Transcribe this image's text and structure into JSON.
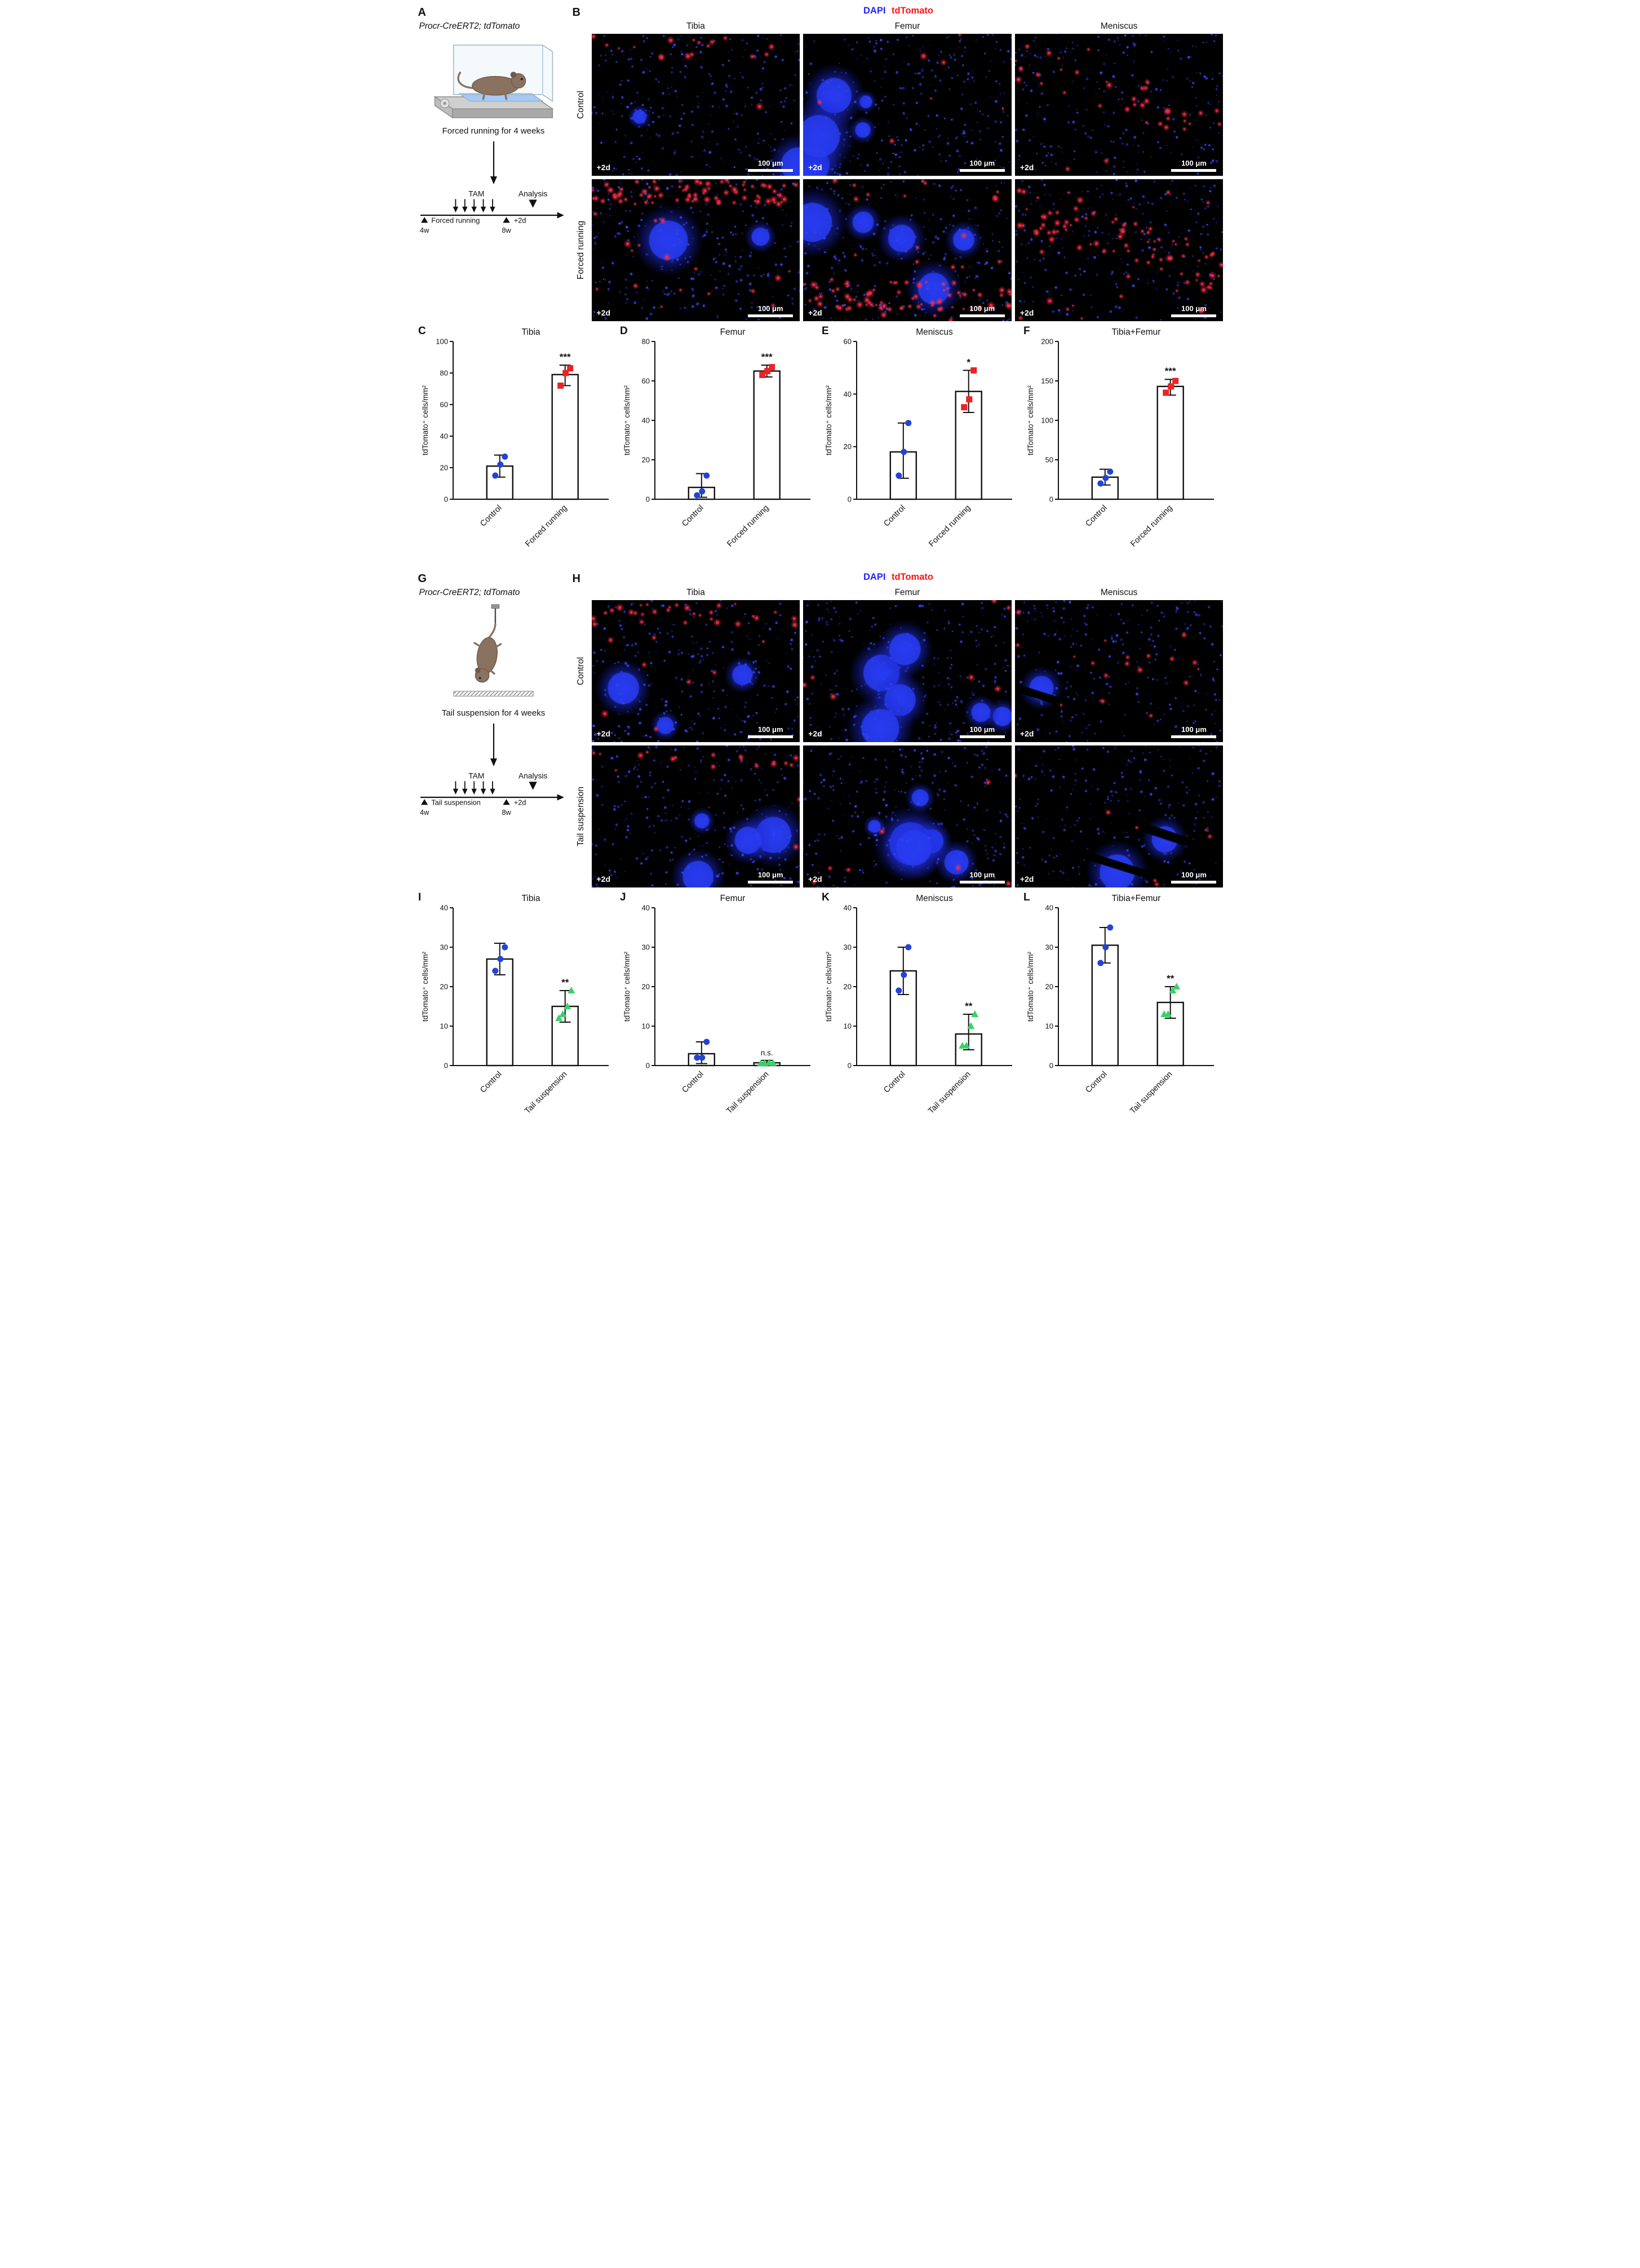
{
  "colors": {
    "dapi_label": "#2222ff",
    "tdtomato_label": "#ff1414",
    "control_points": "#2343d7",
    "forced_running_points": "#ed2224",
    "tail_suspension_points": "#3ad168",
    "bar_fill": "#ffffff",
    "axis": "#111111"
  },
  "panels": {
    "A": {
      "letter": "A",
      "genotype": "Procr-CreERT2; tdTomato",
      "caption": "Forced running for 4 weeks",
      "timeline": {
        "tam": "TAM",
        "analysis": "Analysis",
        "period": "Forced running",
        "start": "4w",
        "end": "8w",
        "extra": "+2d"
      }
    },
    "B": {
      "letter": "B",
      "stain_dapi": "DAPI",
      "stain_tdtomato": "tdTomato",
      "columns": [
        "Tibia",
        "Femur",
        "Meniscus"
      ],
      "rows": [
        "Control",
        "Forced running"
      ],
      "overlay_tag": "+2d",
      "scale_label": "100 μm",
      "images": [
        {
          "condition": "Control",
          "tissue": "Tibia",
          "red": "low",
          "zone": "top",
          "blobs": 2
        },
        {
          "condition": "Control",
          "tissue": "Femur",
          "red": "sparse",
          "zone": "scatter",
          "blobs": 5
        },
        {
          "condition": "Control",
          "tissue": "Meniscus",
          "red": "mid",
          "zone": "diag",
          "blobs": 0
        },
        {
          "condition": "Forced running",
          "tissue": "Tibia",
          "red": "high",
          "zone": "top",
          "blobs": 2
        },
        {
          "condition": "Forced running",
          "tissue": "Femur",
          "red": "high",
          "zone": "bottom",
          "blobs": 5
        },
        {
          "condition": "Forced running",
          "tissue": "Meniscus",
          "red": "high",
          "zone": "diag",
          "blobs": 0
        }
      ]
    },
    "G": {
      "letter": "G",
      "genotype": "Procr-CreERT2; tdTomato",
      "caption": "Tail suspension for 4 weeks",
      "timeline": {
        "tam": "TAM",
        "analysis": "Analysis",
        "period": "Tail suspension",
        "start": "4w",
        "end": "8w",
        "extra": "+2d"
      }
    },
    "H": {
      "letter": "H",
      "stain_dapi": "DAPI",
      "stain_tdtomato": "tdTomato",
      "columns": [
        "Tibia",
        "Femur",
        "Meniscus"
      ],
      "rows": [
        "Control",
        "Tail suspension"
      ],
      "overlay_tag": "+2d",
      "scale_label": "100 μm",
      "images": [
        {
          "condition": "Control",
          "tissue": "Tibia",
          "red": "mid",
          "zone": "top",
          "blobs": 3
        },
        {
          "condition": "Control",
          "tissue": "Femur",
          "red": "sparse",
          "zone": "scatter",
          "blobs": 6
        },
        {
          "condition": "Control",
          "tissue": "Meniscus",
          "red": "low",
          "zone": "diag",
          "blobs": 1
        },
        {
          "condition": "Tail suspension",
          "tissue": "Tibia",
          "red": "low",
          "zone": "top",
          "blobs": 4
        },
        {
          "condition": "Tail suspension",
          "tissue": "Femur",
          "red": "sparse",
          "zone": "scatter",
          "blobs": 6
        },
        {
          "condition": "Tail suspension",
          "tissue": "Meniscus",
          "red": "sparse",
          "zone": "diag",
          "blobs": 2
        }
      ]
    }
  },
  "chart_data": [
    {
      "panel": "C",
      "type": "bar",
      "title": "Tibia",
      "ylabel": "tdTomato⁺ cells/mm²",
      "ylim": [
        0,
        100
      ],
      "yticks": [
        0,
        20,
        40,
        60,
        80,
        100
      ],
      "groups": [
        {
          "label": "Control",
          "mean": 21,
          "err": [
            14,
            28
          ],
          "points": [
            15,
            22,
            27
          ],
          "marker": "circle",
          "color": "#2343d7"
        },
        {
          "label": "Forced running",
          "mean": 79,
          "err": [
            72,
            85
          ],
          "points": [
            72,
            80,
            83
          ],
          "marker": "square",
          "color": "#ed2224",
          "sig": "***"
        }
      ]
    },
    {
      "panel": "D",
      "type": "bar",
      "title": "Femur",
      "ylabel": "tdTomato⁺ cells/mm²",
      "ylim": [
        0,
        80
      ],
      "yticks": [
        0,
        20,
        40,
        60,
        80
      ],
      "groups": [
        {
          "label": "Control",
          "mean": 6,
          "err": [
            1,
            13
          ],
          "points": [
            2,
            4,
            12
          ],
          "marker": "circle",
          "color": "#2343d7"
        },
        {
          "label": "Forced running",
          "mean": 65,
          "err": [
            62,
            68
          ],
          "points": [
            63,
            65,
            67
          ],
          "marker": "square",
          "color": "#ed2224",
          "sig": "***"
        }
      ]
    },
    {
      "panel": "E",
      "type": "bar",
      "title": "Meniscus",
      "ylabel": "tdTomato⁺ cells/mm²",
      "ylim": [
        0,
        60
      ],
      "yticks": [
        0,
        20,
        40,
        60
      ],
      "groups": [
        {
          "label": "Control",
          "mean": 18,
          "err": [
            8,
            29
          ],
          "points": [
            9,
            18,
            29
          ],
          "marker": "circle",
          "color": "#2343d7"
        },
        {
          "label": "Forced running",
          "mean": 41,
          "err": [
            33,
            49
          ],
          "points": [
            35,
            38,
            49
          ],
          "marker": "square",
          "color": "#ed2224",
          "sig": "*"
        }
      ]
    },
    {
      "panel": "F",
      "type": "bar",
      "title": "Tibia+Femur",
      "ylabel": "tdTomato⁺ cells/mm²",
      "ylim": [
        0,
        200
      ],
      "yticks": [
        0,
        50,
        100,
        150,
        200
      ],
      "groups": [
        {
          "label": "Control",
          "mean": 28,
          "err": [
            18,
            38
          ],
          "points": [
            20,
            27,
            35
          ],
          "marker": "circle",
          "color": "#2343d7"
        },
        {
          "label": "Forced running",
          "mean": 143,
          "err": [
            132,
            152
          ],
          "points": [
            135,
            143,
            150
          ],
          "marker": "square",
          "color": "#ed2224",
          "sig": "***"
        }
      ]
    },
    {
      "panel": "I",
      "type": "bar",
      "title": "Tibia",
      "ylabel": "tdTomato⁺ cells/mm²",
      "ylim": [
        0,
        40
      ],
      "yticks": [
        0,
        10,
        20,
        30,
        40
      ],
      "groups": [
        {
          "label": "Control",
          "mean": 27,
          "err": [
            23,
            31
          ],
          "points": [
            24,
            27,
            30
          ],
          "marker": "circle",
          "color": "#2343d7"
        },
        {
          "label": "Tail suspension",
          "mean": 15,
          "err": [
            11,
            19
          ],
          "points": [
            12,
            13,
            15,
            19
          ],
          "marker": "triangle",
          "color": "#3ad168",
          "sig": "**"
        }
      ]
    },
    {
      "panel": "J",
      "type": "bar",
      "title": "Femur",
      "ylabel": "tdTomato⁺ cells/mm²",
      "ylim": [
        0,
        40
      ],
      "yticks": [
        0,
        10,
        20,
        30,
        40
      ],
      "groups": [
        {
          "label": "Control",
          "mean": 3,
          "err": [
            0.5,
            6
          ],
          "points": [
            2,
            2,
            6
          ],
          "marker": "circle",
          "color": "#2343d7"
        },
        {
          "label": "Tail suspension",
          "mean": 0.7,
          "err": [
            0.3,
            1.3
          ],
          "points": [
            0.5,
            0.6,
            0.7,
            0.6
          ],
          "marker": "triangle",
          "color": "#3ad168",
          "sig": "n.s."
        }
      ]
    },
    {
      "panel": "K",
      "type": "bar",
      "title": "Meniscus",
      "ylabel": "tdTomato⁺ cells/mm²",
      "ylim": [
        0,
        40
      ],
      "yticks": [
        0,
        10,
        20,
        30,
        40
      ],
      "groups": [
        {
          "label": "Control",
          "mean": 24,
          "err": [
            18,
            30
          ],
          "points": [
            19,
            23,
            30
          ],
          "marker": "circle",
          "color": "#2343d7"
        },
        {
          "label": "Tail suspension",
          "mean": 8,
          "err": [
            4,
            13
          ],
          "points": [
            5,
            5,
            10,
            13
          ],
          "marker": "triangle",
          "color": "#3ad168",
          "sig": "**"
        }
      ]
    },
    {
      "panel": "L",
      "type": "bar",
      "title": "Tibia+Femur",
      "ylabel": "tdTomato⁺ cells/mm²",
      "ylim": [
        0,
        40
      ],
      "yticks": [
        0,
        10,
        20,
        30,
        40
      ],
      "groups": [
        {
          "label": "Control",
          "mean": 30.5,
          "err": [
            26,
            35
          ],
          "points": [
            26,
            30,
            35
          ],
          "marker": "circle",
          "color": "#2343d7"
        },
        {
          "label": "Tail suspension",
          "mean": 16,
          "err": [
            12,
            20
          ],
          "points": [
            13,
            13,
            19,
            20
          ],
          "marker": "triangle",
          "color": "#3ad168",
          "sig": "**"
        }
      ]
    }
  ]
}
